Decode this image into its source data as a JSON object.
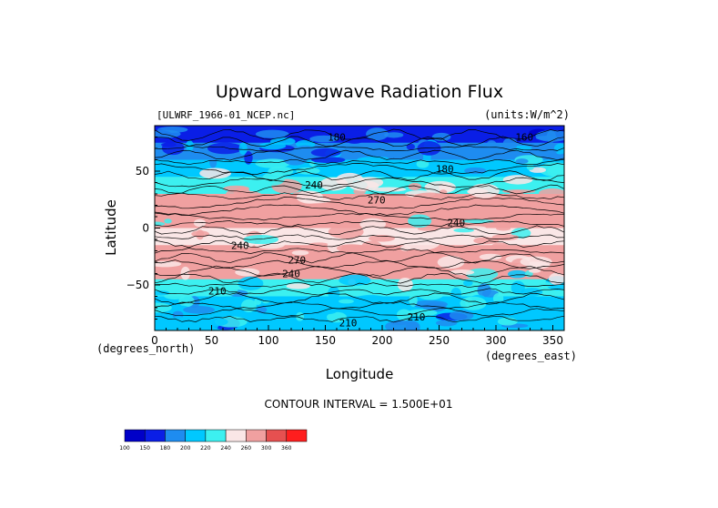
{
  "chart_data": {
    "type": "heatmap",
    "title": "Upward Longwave Radiation Flux",
    "subtitle_left": "[ULWRF_1966-01_NCEP.nc]",
    "subtitle_right": "(units:W/m^2)",
    "xlabel": "Longitude",
    "ylabel": "Latitude",
    "x_unit_label": "(degrees_east)",
    "y_unit_label": "(degrees_north)",
    "footer": "CONTOUR INTERVAL = 1.500E+01",
    "xlim": [
      0,
      360
    ],
    "ylim": [
      -90,
      90
    ],
    "x_ticks": [
      0,
      50,
      100,
      150,
      200,
      250,
      300,
      350
    ],
    "y_ticks": [
      50,
      0,
      -50
    ],
    "y_tick_labels": [
      "50",
      "0",
      "−50"
    ],
    "colorbar": {
      "levels": [
        "100",
        "150",
        "180",
        "200",
        "220",
        "240",
        "260",
        "300",
        "360"
      ],
      "colors": [
        "#0000c8",
        "#0a1ee6",
        "#1e8cf0",
        "#00c8ff",
        "#3cf0f0",
        "#fae6e6",
        "#f0a0a0",
        "#e65050",
        "#ff1e1e"
      ]
    },
    "bands": [
      {
        "lat": 90,
        "value": 160
      },
      {
        "lat": 75,
        "value": 185
      },
      {
        "lat": 60,
        "value": 200
      },
      {
        "lat": 45,
        "value": 235
      },
      {
        "lat": 30,
        "value": 275
      },
      {
        "lat": 15,
        "value": 270
      },
      {
        "lat": 0,
        "value": 250
      },
      {
        "lat": -15,
        "value": 270
      },
      {
        "lat": -30,
        "value": 275
      },
      {
        "lat": -45,
        "value": 230
      },
      {
        "lat": -60,
        "value": 215
      },
      {
        "lat": -75,
        "value": 205
      },
      {
        "lat": -90,
        "value": 190
      }
    ],
    "contour_labels": [
      {
        "text": "180",
        "lon": 160,
        "lat": 80
      },
      {
        "text": "160",
        "lon": 325,
        "lat": 80
      },
      {
        "text": "180",
        "lon": 255,
        "lat": 52
      },
      {
        "text": "240",
        "lon": 140,
        "lat": 38
      },
      {
        "text": "270",
        "lon": 195,
        "lat": 25
      },
      {
        "text": "240",
        "lon": 265,
        "lat": 5
      },
      {
        "text": "240",
        "lon": 75,
        "lat": -15
      },
      {
        "text": "270",
        "lon": 125,
        "lat": -28
      },
      {
        "text": "240",
        "lon": 120,
        "lat": -40
      },
      {
        "text": "210",
        "lon": 55,
        "lat": -55
      },
      {
        "text": "210",
        "lon": 230,
        "lat": -78
      },
      {
        "text": "210",
        "lon": 170,
        "lat": -83
      }
    ]
  }
}
